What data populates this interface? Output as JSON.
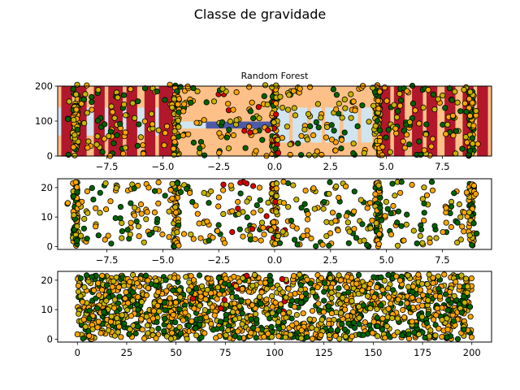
{
  "figure": {
    "suptitle": "Classe de gravidade"
  },
  "chart_data": [
    {
      "type": "scatter",
      "title": "Random Forest",
      "background": "decision-regions",
      "xlim": [
        -9.7,
        9.7
      ],
      "ylim": [
        0,
        200
      ],
      "xticks": [
        "−7.5",
        "−5.0",
        "−2.5",
        "0.0",
        "2.5",
        "5.0",
        "7.5"
      ],
      "xtick_values": [
        -7.5,
        -5.0,
        -2.5,
        0.0,
        2.5,
        5.0,
        7.5
      ],
      "yticks": [
        "0",
        "100",
        "200"
      ],
      "ytick_values": [
        0,
        100,
        200
      ],
      "grid": false,
      "classes": [
        {
          "name": "",
          "color": "#006400",
          "region_color": "#b2182b"
        },
        {
          "name": "",
          "color": "#c8b400",
          "region_color": "#d1e5f0"
        },
        {
          "name": "",
          "color": "#ffa500",
          "region_color": "#fdc088"
        },
        {
          "name": "",
          "color": "#dd0000",
          "region_color": "#4d5aa8"
        }
      ],
      "vertical_clusters_x": [
        -8.9,
        -4.4,
        0.0,
        4.6,
        8.8
      ]
    },
    {
      "type": "scatter",
      "xlim": [
        -9.7,
        9.7
      ],
      "ylim": [
        -1,
        23
      ],
      "xticks": [
        "−7.5",
        "−5.0",
        "−2.5",
        "0.0",
        "2.5",
        "5.0",
        "7.5"
      ],
      "xtick_values": [
        -7.5,
        -5.0,
        -2.5,
        0.0,
        2.5,
        5.0,
        7.5
      ],
      "yticks": [
        "0",
        "10",
        "20"
      ],
      "ytick_values": [
        0,
        10,
        20
      ],
      "grid": false
    },
    {
      "type": "scatter",
      "xlim": [
        -10,
        210
      ],
      "ylim": [
        -1,
        23
      ],
      "xticks": [
        "0",
        "25",
        "50",
        "75",
        "100",
        "125",
        "150",
        "175",
        "200"
      ],
      "xtick_values": [
        0,
        25,
        50,
        75,
        100,
        125,
        150,
        175,
        200
      ],
      "yticks": [
        "0",
        "10",
        "20"
      ],
      "ytick_values": [
        0,
        10,
        20
      ],
      "grid": false
    }
  ]
}
